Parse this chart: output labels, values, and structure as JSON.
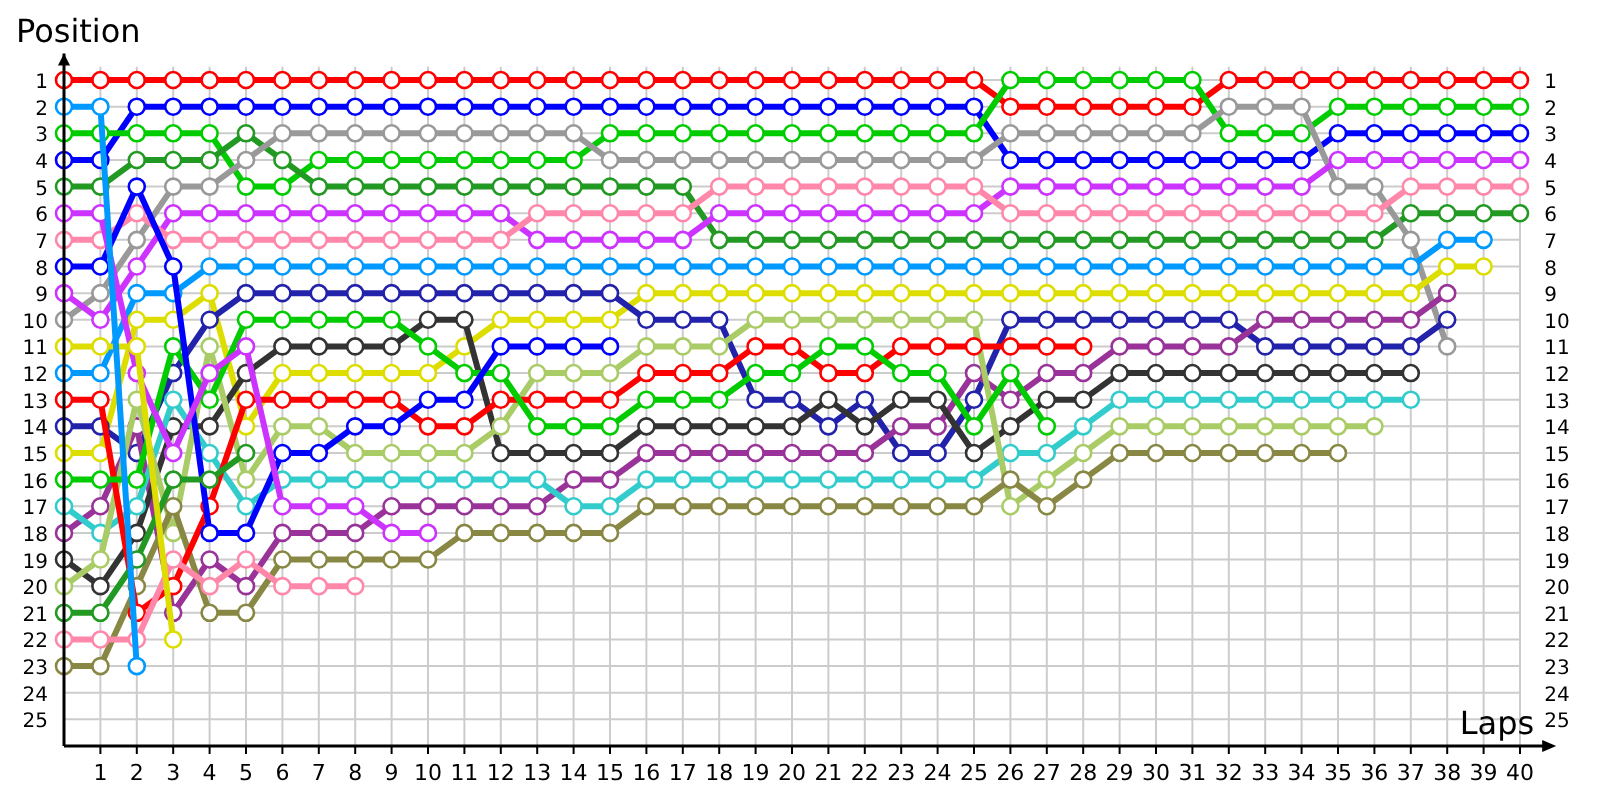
{
  "chart_data": {
    "type": "line",
    "ylabel": "Position",
    "xlabel": "Laps",
    "marker": "circle",
    "grid": true,
    "x": [
      0,
      1,
      2,
      3,
      4,
      5,
      6,
      7,
      8,
      9,
      10,
      11,
      12,
      13,
      14,
      15,
      16,
      17,
      18,
      19,
      20,
      21,
      22,
      23,
      24,
      25,
      26,
      27,
      28,
      29,
      30,
      31,
      32,
      33,
      34,
      35,
      36,
      37,
      38,
      39,
      40
    ],
    "xlim": [
      0,
      40.5
    ],
    "xticks": [
      1,
      2,
      3,
      4,
      5,
      6,
      7,
      8,
      9,
      10,
      11,
      12,
      13,
      14,
      15,
      16,
      17,
      18,
      19,
      20,
      21,
      22,
      23,
      24,
      25,
      26,
      27,
      28,
      29,
      30,
      31,
      32,
      33,
      34,
      35,
      36,
      37,
      38,
      39,
      40
    ],
    "ylim": [
      26,
      0
    ],
    "yticks": [
      1,
      2,
      3,
      4,
      5,
      6,
      7,
      8,
      9,
      10,
      11,
      12,
      13,
      14,
      15,
      16,
      17,
      18,
      19,
      20,
      21,
      22,
      23,
      24,
      25
    ],
    "y2lim": [
      25,
      1
    ],
    "y2ticks": [
      1,
      2,
      3,
      4,
      5,
      6,
      7,
      8,
      9,
      10,
      11,
      12,
      13,
      14,
      15,
      16,
      17,
      18,
      19,
      20,
      21,
      22,
      23,
      24,
      25
    ],
    "series": [
      {
        "color": "#ff0000",
        "values": [
          1,
          1,
          1,
          1,
          1,
          1,
          1,
          1,
          1,
          1,
          1,
          1,
          1,
          1,
          1,
          1,
          1,
          1,
          1,
          1,
          1,
          1,
          1,
          1,
          1,
          1,
          2,
          2,
          2,
          2,
          2,
          2,
          1,
          1,
          1,
          1,
          1,
          1,
          1,
          1,
          1
        ]
      },
      {
        "color": "#0000ff",
        "values": [
          4,
          4,
          2,
          2,
          2,
          2,
          2,
          2,
          2,
          2,
          2,
          2,
          2,
          2,
          2,
          2,
          2,
          2,
          2,
          2,
          2,
          2,
          2,
          2,
          2,
          2,
          4,
          4,
          4,
          4,
          4,
          4,
          4,
          4,
          4,
          3,
          3,
          3,
          3,
          3,
          3
        ]
      },
      {
        "color": "#00cc00",
        "values": [
          3,
          3,
          3,
          3,
          3,
          5,
          5,
          4,
          4,
          4,
          4,
          4,
          4,
          4,
          4,
          3,
          3,
          3,
          3,
          3,
          3,
          3,
          3,
          3,
          3,
          3,
          1,
          1,
          1,
          1,
          1,
          1,
          3,
          3,
          3,
          2,
          2,
          2,
          2,
          2,
          2
        ]
      },
      {
        "color": "#229922",
        "values": [
          5,
          5,
          4,
          4,
          4,
          3,
          4,
          5,
          5,
          5,
          5,
          5,
          5,
          5,
          5,
          5,
          5,
          5,
          7,
          7,
          7,
          7,
          7,
          7,
          7,
          7,
          7,
          7,
          7,
          7,
          7,
          7,
          7,
          7,
          7,
          7,
          7,
          6,
          6,
          6,
          6
        ]
      },
      {
        "color": "#999999",
        "values": [
          10,
          9,
          7,
          5,
          5,
          4,
          3,
          3,
          3,
          3,
          3,
          3,
          3,
          3,
          3,
          4,
          4,
          4,
          4,
          4,
          4,
          4,
          4,
          4,
          4,
          4,
          3,
          3,
          3,
          3,
          3,
          3,
          2,
          2,
          2,
          5,
          5,
          7,
          11,
          null,
          null
        ]
      },
      {
        "color": "#cc33ff",
        "values": [
          9,
          10,
          8,
          6,
          6,
          6,
          6,
          6,
          6,
          6,
          6,
          6,
          6,
          7,
          7,
          7,
          7,
          7,
          6,
          6,
          6,
          6,
          6,
          6,
          6,
          6,
          5,
          5,
          5,
          5,
          5,
          5,
          5,
          5,
          5,
          4,
          4,
          4,
          4,
          4,
          4
        ]
      },
      {
        "color": "#ff88aa",
        "values": [
          7,
          7,
          6,
          7,
          7,
          7,
          7,
          7,
          7,
          7,
          7,
          7,
          7,
          6,
          6,
          6,
          6,
          6,
          5,
          5,
          5,
          5,
          5,
          5,
          5,
          5,
          6,
          6,
          6,
          6,
          6,
          6,
          6,
          6,
          6,
          6,
          6,
          5,
          5,
          5,
          5
        ]
      },
      {
        "color": "#0099ff",
        "values": [
          12,
          12,
          9,
          9,
          8,
          8,
          8,
          8,
          8,
          8,
          8,
          8,
          8,
          8,
          8,
          8,
          8,
          8,
          8,
          8,
          8,
          8,
          8,
          8,
          8,
          8,
          8,
          8,
          8,
          8,
          8,
          8,
          8,
          8,
          8,
          8,
          8,
          8,
          7,
          7,
          null
        ]
      },
      {
        "color": "#dddd00",
        "values": [
          15,
          15,
          10,
          10,
          9,
          14,
          12,
          12,
          12,
          12,
          12,
          11,
          10,
          10,
          10,
          10,
          9,
          9,
          9,
          9,
          9,
          9,
          9,
          9,
          9,
          9,
          9,
          9,
          9,
          9,
          9,
          9,
          9,
          9,
          9,
          9,
          9,
          9,
          8,
          8,
          null
        ]
      },
      {
        "color": "#2222aa",
        "values": [
          14,
          14,
          15,
          12,
          10,
          9,
          9,
          9,
          9,
          9,
          9,
          9,
          9,
          9,
          9,
          9,
          10,
          10,
          10,
          13,
          13,
          14,
          13,
          15,
          15,
          13,
          10,
          10,
          10,
          10,
          10,
          10,
          10,
          11,
          11,
          11,
          11,
          11,
          10,
          null,
          null
        ]
      },
      {
        "color": "#993399",
        "values": [
          18,
          17,
          14,
          21,
          19,
          20,
          18,
          18,
          18,
          17,
          17,
          17,
          17,
          17,
          16,
          16,
          15,
          15,
          15,
          15,
          15,
          15,
          15,
          14,
          14,
          12,
          13,
          12,
          12,
          11,
          11,
          11,
          11,
          10,
          10,
          10,
          10,
          10,
          9,
          null,
          null
        ]
      },
      {
        "color": "#333333",
        "values": [
          19,
          20,
          18,
          14,
          14,
          12,
          11,
          11,
          11,
          11,
          10,
          10,
          15,
          15,
          15,
          15,
          14,
          14,
          14,
          14,
          14,
          13,
          14,
          13,
          13,
          15,
          14,
          13,
          13,
          12,
          12,
          12,
          12,
          12,
          12,
          12,
          12,
          12,
          null,
          null,
          null
        ]
      },
      {
        "color": "#33cccc",
        "values": [
          17,
          18,
          17,
          13,
          15,
          17,
          16,
          16,
          16,
          16,
          16,
          16,
          16,
          16,
          17,
          17,
          16,
          16,
          16,
          16,
          16,
          16,
          16,
          16,
          16,
          16,
          15,
          15,
          14,
          13,
          13,
          13,
          13,
          13,
          13,
          13,
          13,
          13,
          null,
          null,
          null
        ]
      },
      {
        "color": "#aacc66",
        "values": [
          20,
          19,
          13,
          18,
          11,
          16,
          14,
          14,
          15,
          15,
          15,
          15,
          14,
          12,
          12,
          12,
          11,
          11,
          11,
          10,
          10,
          10,
          10,
          10,
          10,
          10,
          17,
          16,
          15,
          14,
          14,
          14,
          14,
          14,
          14,
          14,
          14,
          null,
          null,
          null,
          null
        ]
      },
      {
        "color": "#888844",
        "values": [
          23,
          23,
          20,
          17,
          21,
          21,
          19,
          19,
          19,
          19,
          19,
          18,
          18,
          18,
          18,
          18,
          17,
          17,
          17,
          17,
          17,
          17,
          17,
          17,
          17,
          17,
          16,
          17,
          16,
          15,
          15,
          15,
          15,
          15,
          15,
          15,
          null,
          null,
          null,
          null,
          null
        ]
      },
      {
        "color": "#ff0000",
        "values": [
          13,
          13,
          21,
          20,
          17,
          13,
          13,
          13,
          13,
          13,
          14,
          14,
          13,
          13,
          13,
          13,
          12,
          12,
          12,
          11,
          11,
          12,
          12,
          11,
          11,
          11,
          11,
          11,
          11,
          null,
          null,
          null,
          null,
          null,
          null,
          null,
          null,
          null,
          null,
          null,
          null
        ]
      },
      {
        "color": "#00cc00",
        "values": [
          16,
          16,
          16,
          11,
          13,
          10,
          10,
          10,
          10,
          10,
          11,
          12,
          12,
          14,
          14,
          14,
          13,
          13,
          13,
          12,
          12,
          11,
          11,
          12,
          12,
          14,
          12,
          14,
          null,
          null,
          null,
          null,
          null,
          null,
          null,
          null,
          null,
          null,
          null,
          null,
          null
        ]
      },
      {
        "color": "#0000ff",
        "values": [
          8,
          8,
          5,
          8,
          18,
          18,
          15,
          15,
          14,
          14,
          13,
          13,
          11,
          11,
          11,
          11,
          null,
          null,
          null,
          null,
          null,
          null,
          null,
          null,
          null,
          null,
          null,
          null,
          null,
          null,
          null,
          null,
          null,
          null,
          null,
          null,
          null,
          null,
          null,
          null,
          null
        ]
      },
      {
        "color": "#cc33ff",
        "values": [
          6,
          6,
          12,
          15,
          12,
          11,
          17,
          17,
          17,
          18,
          18,
          null,
          null,
          null,
          null,
          null,
          null,
          null,
          null,
          null,
          null,
          null,
          null,
          null,
          null,
          null,
          null,
          null,
          null,
          null,
          null,
          null,
          null,
          null,
          null,
          null,
          null,
          null,
          null,
          null,
          null
        ]
      },
      {
        "color": "#ff88aa",
        "values": [
          22,
          22,
          22,
          19,
          20,
          19,
          20,
          20,
          20,
          null,
          null,
          null,
          null,
          null,
          null,
          null,
          null,
          null,
          null,
          null,
          null,
          null,
          null,
          null,
          null,
          null,
          null,
          null,
          null,
          null,
          null,
          null,
          null,
          null,
          null,
          null,
          null,
          null,
          null,
          null,
          null
        ]
      },
      {
        "color": "#229922",
        "values": [
          21,
          21,
          19,
          16,
          16,
          15,
          null,
          null,
          null,
          null,
          null,
          null,
          null,
          null,
          null,
          null,
          null,
          null,
          null,
          null,
          null,
          null,
          null,
          null,
          null,
          null,
          null,
          null,
          null,
          null,
          null,
          null,
          null,
          null,
          null,
          null,
          null,
          null,
          null,
          null,
          null
        ]
      },
      {
        "color": "#dddd00",
        "values": [
          11,
          11,
          11,
          22,
          null,
          null,
          null,
          null,
          null,
          null,
          null,
          null,
          null,
          null,
          null,
          null,
          null,
          null,
          null,
          null,
          null,
          null,
          null,
          null,
          null,
          null,
          null,
          null,
          null,
          null,
          null,
          null,
          null,
          null,
          null,
          null,
          null,
          null,
          null,
          null,
          null
        ]
      },
      {
        "color": "#0099ff",
        "values": [
          2,
          2,
          23,
          null,
          null,
          null,
          null,
          null,
          null,
          null,
          null,
          null,
          null,
          null,
          null,
          null,
          null,
          null,
          null,
          null,
          null,
          null,
          null,
          null,
          null,
          null,
          null,
          null,
          null,
          null,
          null,
          null,
          null,
          null,
          null,
          null,
          null,
          null,
          null,
          null,
          null
        ]
      }
    ]
  }
}
